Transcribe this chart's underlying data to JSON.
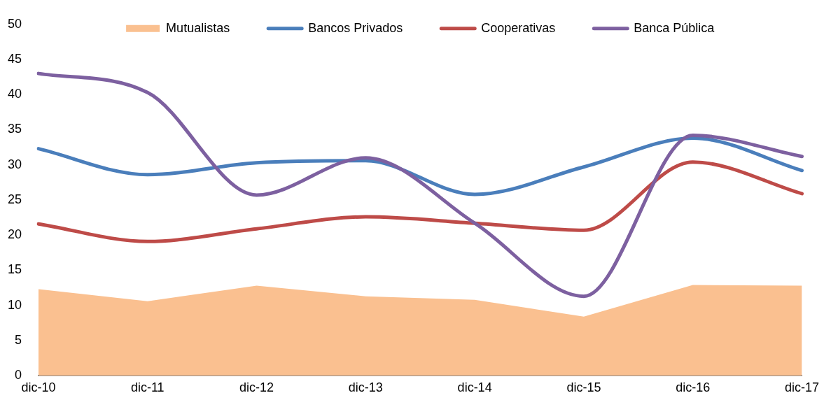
{
  "chart_data": {
    "type": "line",
    "categories": [
      "dic-10",
      "dic-11",
      "dic-12",
      "dic-13",
      "dic-14",
      "dic-15",
      "dic-16",
      "dic-17"
    ],
    "ylim": [
      0,
      50
    ],
    "yticks": [
      0,
      5,
      10,
      15,
      20,
      25,
      30,
      35,
      40,
      45,
      50
    ],
    "legend": "top",
    "series": [
      {
        "name": "Mutualistas",
        "type": "area",
        "color": "#fac090",
        "values": [
          12.3,
          10.6,
          12.8,
          11.3,
          10.8,
          8.4,
          12.9,
          12.8
        ]
      },
      {
        "name": "Bancos Privados",
        "color": "#4a7ebb",
        "values": [
          32.3,
          28.6,
          30.3,
          30.6,
          25.8,
          29.7,
          33.8,
          29.2
        ]
      },
      {
        "name": "Cooperativas",
        "color": "#be4b48",
        "values": [
          21.6,
          19.1,
          20.9,
          22.6,
          21.7,
          20.7,
          30.4,
          25.9
        ]
      },
      {
        "name": "Banca Pública",
        "color": "#7d60a0",
        "values": [
          43.0,
          40.3,
          25.7,
          31.0,
          21.7,
          11.3,
          34.2,
          31.2
        ]
      }
    ]
  }
}
